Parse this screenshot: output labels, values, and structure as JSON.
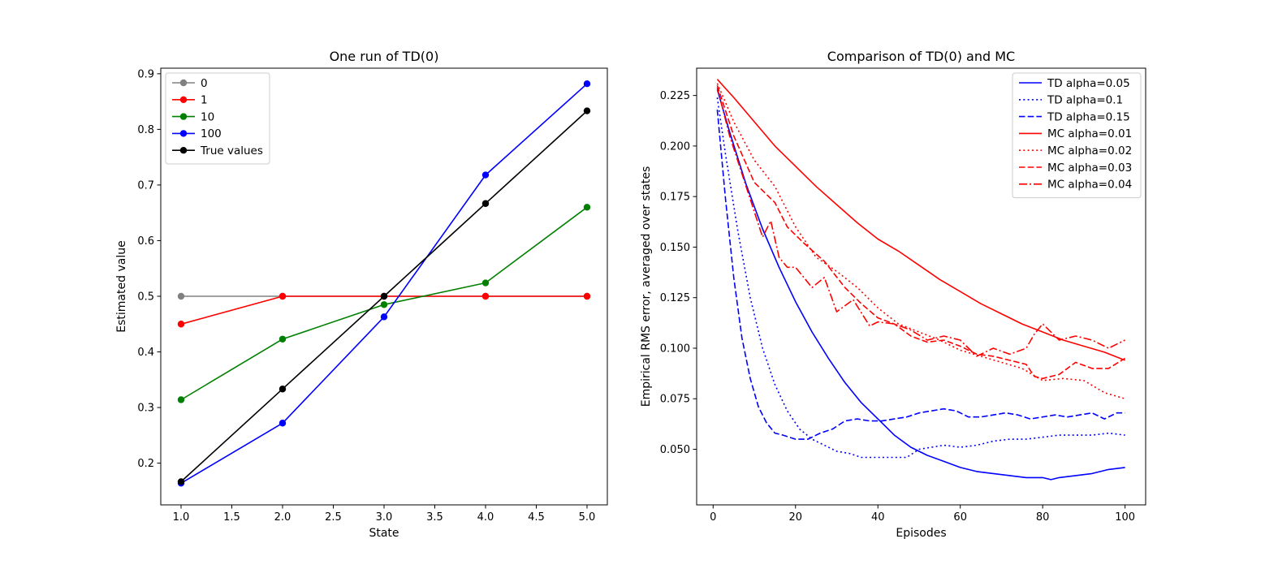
{
  "chart_data": [
    {
      "type": "line",
      "title": "One run of TD(0)",
      "xlabel": "State",
      "ylabel": "Estimated value",
      "xlim": [
        0.8,
        5.2
      ],
      "ylim": [
        0.125,
        0.91
      ],
      "xticks": [
        1.0,
        1.5,
        2.0,
        2.5,
        3.0,
        3.5,
        4.0,
        4.5,
        5.0
      ],
      "xtick_labels": [
        "1.0",
        "1.5",
        "2.0",
        "2.5",
        "3.0",
        "3.5",
        "4.0",
        "4.5",
        "5.0"
      ],
      "yticks": [
        0.2,
        0.3,
        0.4,
        0.5,
        0.6,
        0.7,
        0.8,
        0.9
      ],
      "ytick_labels": [
        "0.2",
        "0.3",
        "0.4",
        "0.5",
        "0.6",
        "0.7",
        "0.8",
        "0.9"
      ],
      "grid": false,
      "legend_position": "top-left",
      "x": [
        1,
        2,
        3,
        4,
        5
      ],
      "series": [
        {
          "name": "0",
          "color": "#808080",
          "marker": "circle",
          "values": [
            0.5,
            0.5,
            0.5,
            0.5,
            0.5
          ]
        },
        {
          "name": "1",
          "color": "#ff0000",
          "marker": "circle",
          "values": [
            0.45,
            0.5,
            0.5,
            0.5,
            0.5
          ]
        },
        {
          "name": "10",
          "color": "#008000",
          "marker": "circle",
          "values": [
            0.314,
            0.423,
            0.485,
            0.524,
            0.66
          ]
        },
        {
          "name": "100",
          "color": "#0000ff",
          "marker": "circle",
          "values": [
            0.164,
            0.272,
            0.463,
            0.718,
            0.882
          ]
        },
        {
          "name": "True values",
          "color": "#000000",
          "marker": "circle",
          "values": [
            0.1667,
            0.3333,
            0.5,
            0.6667,
            0.8333
          ]
        }
      ]
    },
    {
      "type": "line",
      "title": "Comparison of TD(0) and MC",
      "xlabel": "Episodes",
      "ylabel": "Empirical RMS error, averaged over states",
      "xlim": [
        -4,
        105
      ],
      "ylim": [
        0.0225,
        0.2385
      ],
      "xticks": [
        0,
        20,
        40,
        60,
        80,
        100
      ],
      "xtick_labels": [
        "0",
        "20",
        "40",
        "60",
        "80",
        "100"
      ],
      "yticks": [
        0.05,
        0.075,
        0.1,
        0.125,
        0.15,
        0.175,
        0.2,
        0.225
      ],
      "ytick_labels": [
        "0.050",
        "0.075",
        "0.100",
        "0.125",
        "0.150",
        "0.175",
        "0.200",
        "0.225"
      ],
      "grid": false,
      "legend_position": "top-right",
      "series": [
        {
          "name": "TD alpha=0.05",
          "color": "#0000ff",
          "dash": "solid",
          "x": [
            1,
            4,
            8,
            12,
            16,
            20,
            24,
            28,
            32,
            36,
            40,
            44,
            48,
            52,
            56,
            60,
            64,
            68,
            72,
            76,
            80,
            82,
            84,
            88,
            92,
            96,
            100
          ],
          "values": [
            0.228,
            0.207,
            0.181,
            0.159,
            0.14,
            0.123,
            0.108,
            0.095,
            0.083,
            0.073,
            0.065,
            0.057,
            0.051,
            0.047,
            0.044,
            0.041,
            0.039,
            0.038,
            0.037,
            0.036,
            0.036,
            0.035,
            0.036,
            0.037,
            0.038,
            0.04,
            0.041
          ]
        },
        {
          "name": "TD alpha=0.1",
          "color": "#0000ff",
          "dash": "dotted",
          "x": [
            1,
            3,
            6,
            9,
            12,
            15,
            18,
            21,
            24,
            27,
            30,
            33,
            36,
            40,
            44,
            47,
            50,
            53,
            56,
            60,
            64,
            68,
            72,
            76,
            80,
            84,
            88,
            92,
            96,
            100
          ],
          "values": [
            0.224,
            0.196,
            0.158,
            0.125,
            0.1,
            0.082,
            0.069,
            0.06,
            0.055,
            0.052,
            0.049,
            0.048,
            0.046,
            0.046,
            0.046,
            0.046,
            0.05,
            0.051,
            0.052,
            0.051,
            0.052,
            0.054,
            0.055,
            0.055,
            0.056,
            0.057,
            0.057,
            0.057,
            0.058,
            0.057
          ]
        },
        {
          "name": "TD alpha=0.15",
          "color": "#0000ff",
          "dash": "dashed",
          "x": [
            1,
            3,
            5,
            7,
            9,
            11,
            13,
            15,
            17,
            20,
            23,
            26,
            29,
            32,
            35,
            38,
            41,
            44,
            47,
            50,
            53,
            56,
            59,
            62,
            65,
            68,
            71,
            74,
            77,
            80,
            83,
            86,
            89,
            92,
            95,
            98,
            100
          ],
          "values": [
            0.218,
            0.174,
            0.135,
            0.105,
            0.085,
            0.071,
            0.063,
            0.058,
            0.057,
            0.055,
            0.055,
            0.058,
            0.06,
            0.064,
            0.065,
            0.064,
            0.064,
            0.065,
            0.066,
            0.068,
            0.069,
            0.07,
            0.069,
            0.066,
            0.066,
            0.067,
            0.068,
            0.067,
            0.065,
            0.066,
            0.067,
            0.066,
            0.067,
            0.068,
            0.065,
            0.068,
            0.068
          ]
        },
        {
          "name": "MC alpha=0.01",
          "color": "#ff0000",
          "dash": "solid",
          "x": [
            1,
            5,
            10,
            15,
            20,
            25,
            30,
            35,
            40,
            45,
            50,
            55,
            60,
            65,
            70,
            75,
            80,
            85,
            90,
            95,
            100
          ],
          "values": [
            0.233,
            0.224,
            0.212,
            0.2,
            0.19,
            0.18,
            0.171,
            0.162,
            0.154,
            0.148,
            0.141,
            0.134,
            0.128,
            0.122,
            0.117,
            0.112,
            0.108,
            0.104,
            0.101,
            0.098,
            0.094
          ]
        },
        {
          "name": "MC alpha=0.02",
          "color": "#ff0000",
          "dash": "dotted",
          "x": [
            1,
            5,
            10,
            15,
            20,
            25,
            30,
            35,
            40,
            45,
            50,
            55,
            60,
            65,
            70,
            75,
            80,
            85,
            90,
            95,
            100
          ],
          "values": [
            0.231,
            0.212,
            0.193,
            0.18,
            0.16,
            0.145,
            0.138,
            0.13,
            0.12,
            0.112,
            0.108,
            0.104,
            0.099,
            0.096,
            0.093,
            0.09,
            0.084,
            0.085,
            0.084,
            0.078,
            0.075
          ]
        },
        {
          "name": "MC alpha=0.03",
          "color": "#ff0000",
          "dash": "dashed",
          "x": [
            1,
            5,
            10,
            15,
            18,
            22,
            27,
            32,
            36,
            40,
            44,
            48,
            52,
            56,
            60,
            64,
            68,
            72,
            76,
            78,
            80,
            84,
            88,
            92,
            96,
            100
          ],
          "values": [
            0.23,
            0.205,
            0.182,
            0.172,
            0.16,
            0.152,
            0.143,
            0.13,
            0.122,
            0.115,
            0.112,
            0.106,
            0.103,
            0.104,
            0.101,
            0.097,
            0.096,
            0.094,
            0.092,
            0.086,
            0.085,
            0.087,
            0.093,
            0.09,
            0.09,
            0.095
          ]
        },
        {
          "name": "MC alpha=0.04",
          "color": "#ff0000",
          "dash": "dashdot",
          "x": [
            1,
            4,
            8,
            12,
            14,
            16,
            18,
            20,
            24,
            27,
            30,
            34,
            38,
            40,
            44,
            48,
            52,
            56,
            60,
            64,
            68,
            72,
            76,
            78,
            80,
            84,
            88,
            92,
            96,
            100
          ],
          "values": [
            0.229,
            0.205,
            0.18,
            0.155,
            0.163,
            0.145,
            0.14,
            0.14,
            0.13,
            0.135,
            0.118,
            0.124,
            0.111,
            0.113,
            0.112,
            0.109,
            0.104,
            0.106,
            0.104,
            0.096,
            0.1,
            0.097,
            0.1,
            0.107,
            0.112,
            0.104,
            0.106,
            0.104,
            0.1,
            0.104
          ]
        }
      ]
    }
  ]
}
